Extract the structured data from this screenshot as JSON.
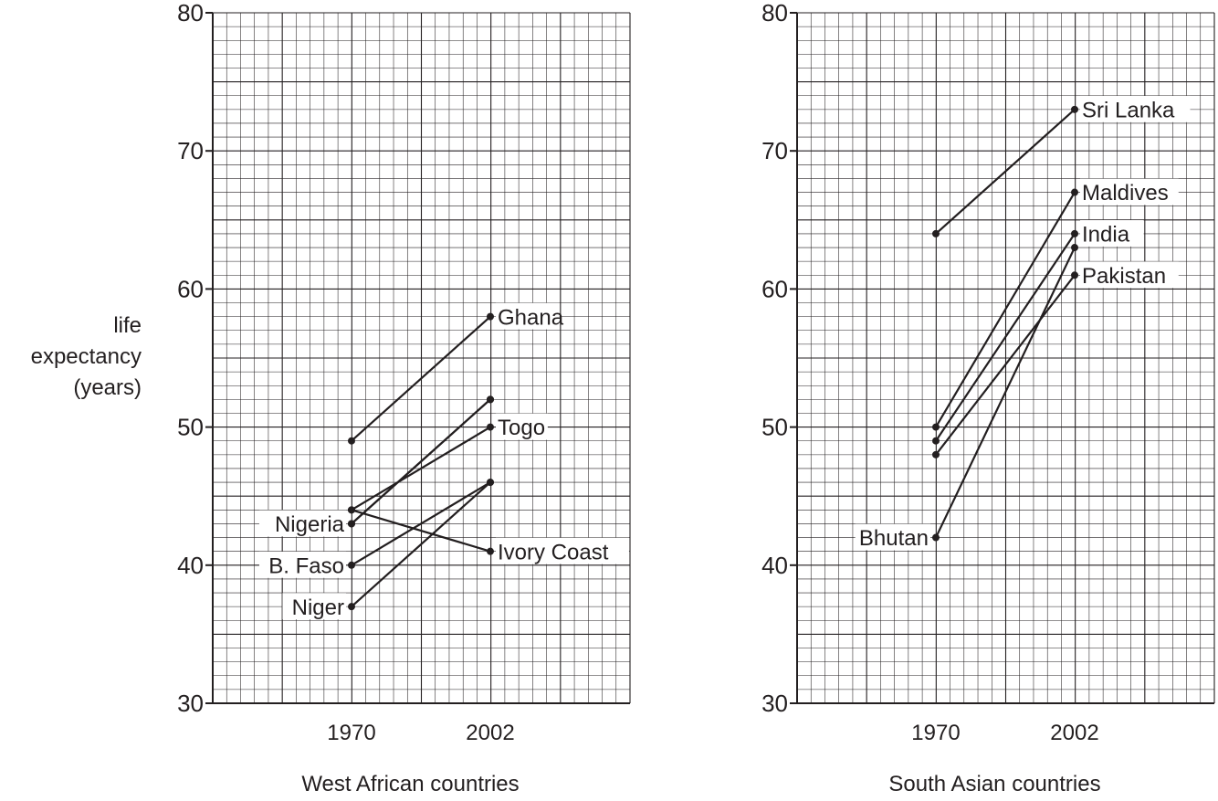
{
  "ylabel_lines": [
    "life",
    "expectancy",
    "(years)"
  ],
  "chart_data": [
    {
      "type": "line",
      "xlabel": "West African countries",
      "ylabel": "life expectancy (years)",
      "categories": [
        "1970",
        "2002"
      ],
      "ylim": [
        30,
        80
      ],
      "yticks": [
        30,
        40,
        50,
        60,
        70,
        80
      ],
      "grid": true,
      "series": [
        {
          "name": "Ghana",
          "values": [
            49,
            58
          ],
          "label_at": "end"
        },
        {
          "name": "",
          "values": [
            43,
            52
          ],
          "label_at": "none"
        },
        {
          "name": "Togo",
          "values": [
            44,
            50
          ],
          "label_at": "end"
        },
        {
          "name": "Ivory Coast",
          "values": [
            44,
            41
          ],
          "label_at": "end"
        },
        {
          "name": "Nigeria",
          "values": [
            43,
            52
          ],
          "label_at": "start"
        },
        {
          "name": "B. Faso",
          "values": [
            40,
            46
          ],
          "label_at": "start"
        },
        {
          "name": "Niger",
          "values": [
            37,
            46
          ],
          "label_at": "start"
        }
      ]
    },
    {
      "type": "line",
      "xlabel": "South Asian countries",
      "ylabel": "",
      "categories": [
        "1970",
        "2002"
      ],
      "ylim": [
        30,
        80
      ],
      "yticks": [
        30,
        40,
        50,
        60,
        70,
        80
      ],
      "grid": true,
      "series": [
        {
          "name": "Sri Lanka",
          "values": [
            64,
            73
          ],
          "label_at": "end"
        },
        {
          "name": "Maldives",
          "values": [
            50,
            67
          ],
          "label_at": "end"
        },
        {
          "name": "India",
          "values": [
            49,
            64
          ],
          "label_at": "end"
        },
        {
          "name": "Pakistan",
          "values": [
            48,
            61
          ],
          "label_at": "end"
        },
        {
          "name": "Bhutan",
          "values": [
            42,
            63
          ],
          "label_at": "start"
        }
      ]
    }
  ]
}
